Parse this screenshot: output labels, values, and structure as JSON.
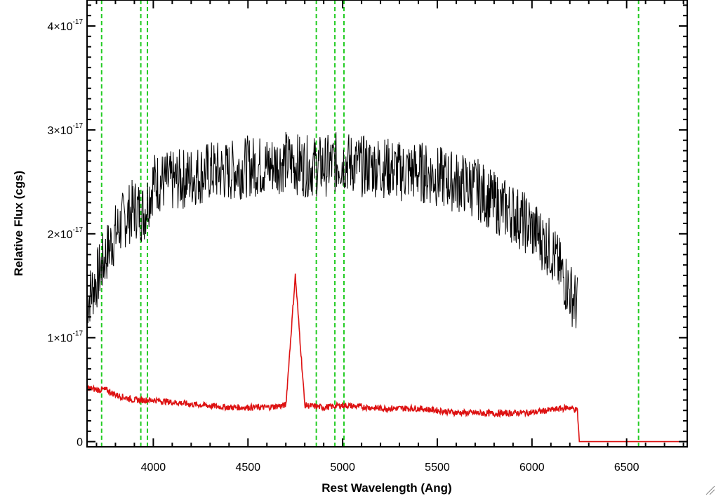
{
  "chart_data": {
    "type": "line",
    "title": "",
    "xlabel": "Rest Wavelength (Ang)",
    "ylabel": "Relative Flux (cgs)",
    "xlim": [
      3650,
      6820
    ],
    "ylim": [
      -5e-19,
      4.25e-17
    ],
    "x_ticks": [
      4000,
      4500,
      5000,
      5500,
      6000,
      6500
    ],
    "x_tick_labels": [
      "4000",
      "4500",
      "5000",
      "5500",
      "6000",
      "6500"
    ],
    "y_ticks": [
      {
        "value": 0,
        "mantissa": "0",
        "exponent": ""
      },
      {
        "value": 1e-17,
        "mantissa": "1×10",
        "exponent": "-17"
      },
      {
        "value": 2e-17,
        "mantissa": "2×10",
        "exponent": "-17"
      },
      {
        "value": 3e-17,
        "mantissa": "3×10",
        "exponent": "-17"
      },
      {
        "value": 4e-17,
        "mantissa": "4×10",
        "exponent": "-17"
      }
    ],
    "vertical_lines_angstrom": [
      3727,
      3934,
      3969,
      4861,
      4959,
      5007,
      6563
    ],
    "series": [
      {
        "color": "#000000",
        "x": [
          3650,
          3700,
          3750,
          3800,
          3850,
          3900,
          3950,
          4000,
          4100,
          4200,
          4300,
          4400,
          4500,
          4600,
          4700,
          4800,
          4900,
          5000,
          5100,
          5200,
          5300,
          5400,
          5500,
          5600,
          5700,
          5800,
          5900,
          6000,
          6100,
          6200,
          6240
        ],
        "y": [
          1.35e-17,
          1.55e-17,
          1.8e-17,
          2e-17,
          2.15e-17,
          2.25e-17,
          2.2e-17,
          2.5e-17,
          2.5e-17,
          2.55e-17,
          2.6e-17,
          2.6e-17,
          2.65e-17,
          2.65e-17,
          2.7e-17,
          2.65e-17,
          2.65e-17,
          2.7e-17,
          2.65e-17,
          2.65e-17,
          2.6e-17,
          2.6e-17,
          2.55e-17,
          2.5e-17,
          2.45e-17,
          2.3e-17,
          2.2e-17,
          2.05e-17,
          1.85e-17,
          1.45e-17,
          1.3e-17
        ]
      },
      {
        "color": "#dd1111",
        "x": [
          3650,
          3700,
          3750,
          3800,
          3900,
          4000,
          4200,
          4400,
          4600,
          4700,
          4750,
          4800,
          4900,
          5000,
          5200,
          5400,
          5600,
          5800,
          6000,
          6200,
          6240,
          6250,
          6820
        ],
        "y": [
          5.2e-18,
          5e-18,
          5e-18,
          4.5e-18,
          4e-18,
          4e-18,
          3.6e-18,
          3.3e-18,
          3.3e-18,
          3.5e-18,
          1.6e-17,
          3.5e-18,
          3.3e-18,
          3.5e-18,
          3.2e-18,
          3.2e-18,
          2.8e-18,
          2.7e-18,
          2.8e-18,
          3.3e-18,
          3e-18,
          0,
          0
        ]
      }
    ],
    "grid": false,
    "legend": "none"
  }
}
